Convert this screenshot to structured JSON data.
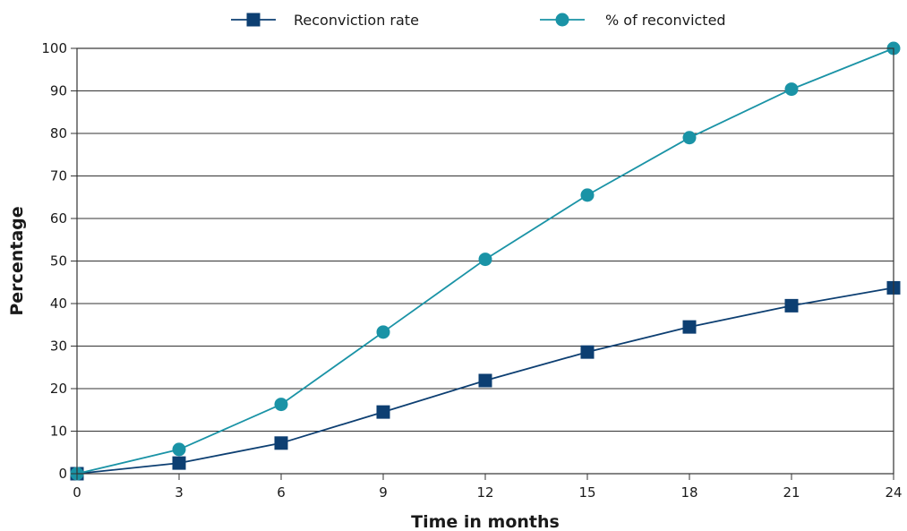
{
  "chart_data": {
    "type": "line",
    "title": "",
    "xlabel": "Time in months",
    "ylabel": "Percentage",
    "x": [
      0,
      3,
      6,
      9,
      12,
      15,
      18,
      21,
      24
    ],
    "xlim": [
      0,
      24
    ],
    "ylim": [
      0,
      100
    ],
    "x_ticks": [
      "0",
      "3",
      "6",
      "9",
      "12",
      "15",
      "18",
      "21",
      "24"
    ],
    "y_ticks": [
      "0",
      "10",
      "20",
      "30",
      "40",
      "50",
      "60",
      "70",
      "80",
      "90",
      "100"
    ],
    "grid": "horizontal",
    "legend": "top-center",
    "series": [
      {
        "name": "Reconviction rate",
        "marker": "square",
        "color": "#0d3f72",
        "values": [
          0,
          2.5,
          7.2,
          14.5,
          21.9,
          28.6,
          34.5,
          39.5,
          43.7
        ]
      },
      {
        "name": "% of reconvicted",
        "marker": "circle",
        "color": "#1a93a6",
        "values": [
          0,
          5.7,
          16.3,
          33.3,
          50.4,
          65.5,
          79.0,
          90.4,
          100
        ]
      }
    ]
  }
}
